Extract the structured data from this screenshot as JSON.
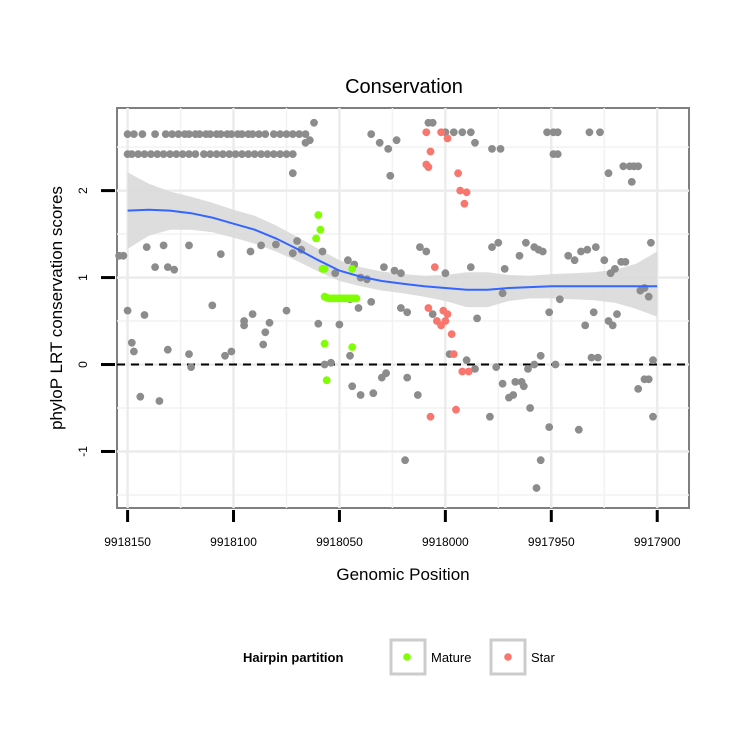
{
  "chart_data": {
    "type": "scatter",
    "title": "Conservation",
    "xlabel": "Genomic Position",
    "ylabel": "phyloP LRT conservation scores",
    "xlim": [
      9918155,
      9917885
    ],
    "x_reversed": true,
    "ylim": [
      -1.65,
      2.95
    ],
    "x_ticks": [
      9918150,
      9918100,
      9918050,
      9918000,
      9917950,
      9917900
    ],
    "x_tick_labels": [
      "9918150",
      "9918100",
      "9918050",
      "9918000",
      "9917950",
      "9917900"
    ],
    "y_ticks": [
      -1,
      0,
      1,
      2
    ],
    "y_tick_labels": [
      "-1",
      "0",
      "1",
      "2"
    ],
    "reference_line": {
      "y": 0,
      "style": "dashed"
    },
    "grid": true,
    "colors": {
      "other": "#8c8c8c",
      "Mature": "#7fff00",
      "Star": "#f8766d",
      "smooth": "#3366ff",
      "ribbon": "#d9d9d9"
    },
    "legend": {
      "title": "Hairpin partition",
      "position": "bottom",
      "entries": [
        {
          "label": "Mature",
          "color": "#7fff00"
        },
        {
          "label": "Star",
          "color": "#f8766d"
        }
      ]
    },
    "series": [
      {
        "name": "Other",
        "points": [
          [
            9918150,
            2.65
          ],
          [
            9918147,
            2.65
          ],
          [
            9918143,
            2.65
          ],
          [
            9918137,
            2.65
          ],
          [
            9918132,
            2.65
          ],
          [
            9918129,
            2.65
          ],
          [
            9918126,
            2.65
          ],
          [
            9918123,
            2.65
          ],
          [
            9918121,
            2.65
          ],
          [
            9918118,
            2.65
          ],
          [
            9918116,
            2.65
          ],
          [
            9918113,
            2.65
          ],
          [
            9918111,
            2.65
          ],
          [
            9918108,
            2.65
          ],
          [
            9918106,
            2.65
          ],
          [
            9918103,
            2.65
          ],
          [
            9918101,
            2.65
          ],
          [
            9918098,
            2.65
          ],
          [
            9918096,
            2.65
          ],
          [
            9918093,
            2.65
          ],
          [
            9918091,
            2.65
          ],
          [
            9918088,
            2.65
          ],
          [
            9918085,
            2.65
          ],
          [
            9918081,
            2.65
          ],
          [
            9918078,
            2.65
          ],
          [
            9918075,
            2.65
          ],
          [
            9918072,
            2.65
          ],
          [
            9918069,
            2.65
          ],
          [
            9918066,
            2.65
          ],
          [
            9918150,
            2.42
          ],
          [
            9918148,
            2.42
          ],
          [
            9918145,
            2.42
          ],
          [
            9918142,
            2.42
          ],
          [
            9918139,
            2.42
          ],
          [
            9918136,
            2.42
          ],
          [
            9918133,
            2.42
          ],
          [
            9918130,
            2.42
          ],
          [
            9918127,
            2.42
          ],
          [
            9918124,
            2.42
          ],
          [
            9918121,
            2.42
          ],
          [
            9918118,
            2.42
          ],
          [
            9918114,
            2.42
          ],
          [
            9918111,
            2.42
          ],
          [
            9918108,
            2.42
          ],
          [
            9918105,
            2.42
          ],
          [
            9918102,
            2.42
          ],
          [
            9918099,
            2.42
          ],
          [
            9918096,
            2.42
          ],
          [
            9918093,
            2.42
          ],
          [
            9918090,
            2.42
          ],
          [
            9918087,
            2.42
          ],
          [
            9918084,
            2.42
          ],
          [
            9918081,
            2.42
          ],
          [
            9918078,
            2.42
          ],
          [
            9918075,
            2.42
          ],
          [
            9918072,
            2.42
          ],
          [
            9918062,
            2.78
          ],
          [
            9918064,
            2.58
          ],
          [
            9918066,
            2.55
          ],
          [
            9918072,
            2.2
          ],
          [
            9918035,
            2.65
          ],
          [
            9918031,
            2.55
          ],
          [
            9918027,
            2.48
          ],
          [
            9918023,
            2.58
          ],
          [
            9918026,
            2.17
          ],
          [
            9918008,
            2.78
          ],
          [
            9918006,
            2.78
          ],
          [
            9918000,
            2.67
          ],
          [
            9917996,
            2.67
          ],
          [
            9917992,
            2.67
          ],
          [
            9917988,
            2.67
          ],
          [
            9917986,
            2.55
          ],
          [
            9917978,
            2.48
          ],
          [
            9917974,
            2.48
          ],
          [
            9917952,
            2.67
          ],
          [
            9917949,
            2.67
          ],
          [
            9917947,
            2.67
          ],
          [
            9917949,
            2.42
          ],
          [
            9917947,
            2.42
          ],
          [
            9917932,
            2.67
          ],
          [
            9917927,
            2.67
          ],
          [
            9917916,
            2.28
          ],
          [
            9917913,
            2.28
          ],
          [
            9917911,
            2.28
          ],
          [
            9917909,
            2.28
          ],
          [
            9917912,
            2.1
          ],
          [
            9917923,
            2.2
          ],
          [
            9918154,
            1.25
          ],
          [
            9918152,
            1.25
          ],
          [
            9918141,
            1.35
          ],
          [
            9918137,
            1.12
          ],
          [
            9918133,
            1.37
          ],
          [
            9918131,
            1.12
          ],
          [
            9918128,
            1.09
          ],
          [
            9918121,
            1.37
          ],
          [
            9918106,
            1.27
          ],
          [
            9918092,
            1.3
          ],
          [
            9918087,
            1.37
          ],
          [
            9918080,
            1.38
          ],
          [
            9918072,
            1.28
          ],
          [
            9918070,
            1.42
          ],
          [
            9918068,
            1.32
          ],
          [
            9918058,
            1.3
          ],
          [
            9918052,
            1.05
          ],
          [
            9918046,
            1.2
          ],
          [
            9918043,
            1.15
          ],
          [
            9918040,
            1.0
          ],
          [
            9918037,
            0.98
          ],
          [
            9918029,
            1.12
          ],
          [
            9918024,
            1.08
          ],
          [
            9918021,
            1.05
          ],
          [
            9918012,
            1.35
          ],
          [
            9918009,
            1.3
          ],
          [
            9918000,
            1.05
          ],
          [
            9917988,
            1.12
          ],
          [
            9917978,
            1.35
          ],
          [
            9917975,
            1.4
          ],
          [
            9917972,
            1.1
          ],
          [
            9917965,
            1.25
          ],
          [
            9917962,
            1.4
          ],
          [
            9917958,
            1.35
          ],
          [
            9917956,
            1.32
          ],
          [
            9917954,
            1.3
          ],
          [
            9917942,
            1.25
          ],
          [
            9917939,
            1.2
          ],
          [
            9917936,
            1.3
          ],
          [
            9917933,
            1.32
          ],
          [
            9917929,
            1.35
          ],
          [
            9917925,
            1.2
          ],
          [
            9917922,
            1.05
          ],
          [
            9917920,
            1.1
          ],
          [
            9917917,
            1.18
          ],
          [
            9917915,
            1.18
          ],
          [
            9917903,
            1.4
          ],
          [
            9918150,
            0.62
          ],
          [
            9918142,
            0.57
          ],
          [
            9918110,
            0.68
          ],
          [
            9918095,
            0.5
          ],
          [
            9918091,
            0.58
          ],
          [
            9918085,
            0.37
          ],
          [
            9918083,
            0.48
          ],
          [
            9918075,
            0.62
          ],
          [
            9918060,
            0.47
          ],
          [
            9918050,
            0.46
          ],
          [
            9918045,
            0.75
          ],
          [
            9918041,
            0.65
          ],
          [
            9918035,
            0.72
          ],
          [
            9918021,
            0.65
          ],
          [
            9918018,
            0.6
          ],
          [
            9918006,
            0.58
          ],
          [
            9917985,
            0.53
          ],
          [
            9917973,
            0.82
          ],
          [
            9917951,
            0.6
          ],
          [
            9917946,
            0.75
          ],
          [
            9917934,
            0.45
          ],
          [
            9917930,
            0.6
          ],
          [
            9917923,
            0.5
          ],
          [
            9917921,
            0.45
          ],
          [
            9917919,
            0.58
          ],
          [
            9917908,
            0.85
          ],
          [
            9917906,
            0.88
          ],
          [
            9917904,
            0.78
          ],
          [
            9918148,
            0.25
          ],
          [
            9918147,
            0.15
          ],
          [
            9918131,
            0.17
          ],
          [
            9918121,
            0.12
          ],
          [
            9918104,
            0.1
          ],
          [
            9918101,
            0.15
          ],
          [
            9918095,
            0.45
          ],
          [
            9918086,
            0.23
          ],
          [
            9918057,
            0.0
          ],
          [
            9918054,
            0.02
          ],
          [
            9918045,
            0.1
          ],
          [
            9918018,
            -0.15
          ],
          [
            9918013,
            -0.35
          ],
          [
            9917998,
            0.12
          ],
          [
            9917990,
            0.05
          ],
          [
            9917986,
            -0.05
          ],
          [
            9917976,
            -0.03
          ],
          [
            9917973,
            -0.22
          ],
          [
            9917970,
            -0.38
          ],
          [
            9917968,
            -0.35
          ],
          [
            9917964,
            -0.2
          ],
          [
            9917961,
            -0.05
          ],
          [
            9917958,
            0.0
          ],
          [
            9917955,
            0.1
          ],
          [
            9917948,
            0.0
          ],
          [
            9917931,
            0.08
          ],
          [
            9917928,
            0.08
          ],
          [
            9917909,
            -0.28
          ],
          [
            9917906,
            -0.17
          ],
          [
            9917904,
            -0.17
          ],
          [
            9917902,
            0.05
          ],
          [
            9918144,
            -0.37
          ],
          [
            9918135,
            -0.42
          ],
          [
            9918120,
            -0.03
          ],
          [
            9918044,
            -0.25
          ],
          [
            9918040,
            -0.35
          ],
          [
            9918034,
            -0.33
          ],
          [
            9918030,
            -0.15
          ],
          [
            9918028,
            -0.1
          ],
          [
            9917967,
            -0.2
          ],
          [
            9917963,
            -0.25
          ],
          [
            9917937,
            -0.75
          ],
          [
            9917960,
            -0.5
          ],
          [
            9917979,
            -0.6
          ],
          [
            9917951,
            -0.72
          ],
          [
            9917955,
            -1.1
          ],
          [
            9917957,
            -1.42
          ],
          [
            9917902,
            -0.6
          ],
          [
            9918019,
            -1.1
          ]
        ]
      },
      {
        "name": "Mature",
        "points": [
          [
            9918060,
            1.72
          ],
          [
            9918059,
            1.55
          ],
          [
            9918061,
            1.45
          ],
          [
            9918058,
            1.1
          ],
          [
            9918057,
            1.1
          ],
          [
            9918044,
            1.1
          ],
          [
            9918057,
            0.78
          ],
          [
            9918056,
            0.77
          ],
          [
            9918055,
            0.76
          ],
          [
            9918054,
            0.76
          ],
          [
            9918053,
            0.76
          ],
          [
            9918052,
            0.76
          ],
          [
            9918051,
            0.76
          ],
          [
            9918050,
            0.76
          ],
          [
            9918049,
            0.76
          ],
          [
            9918048,
            0.76
          ],
          [
            9918047,
            0.76
          ],
          [
            9918046,
            0.76
          ],
          [
            9918045,
            0.76
          ],
          [
            9918044,
            0.76
          ],
          [
            9918043,
            0.76
          ],
          [
            9918042,
            0.76
          ],
          [
            9918057,
            0.24
          ],
          [
            9918044,
            0.2
          ],
          [
            9918056,
            -0.18
          ]
        ]
      },
      {
        "name": "Star",
        "points": [
          [
            9918009,
            2.67
          ],
          [
            9918002,
            2.67
          ],
          [
            9917999,
            2.6
          ],
          [
            9918007,
            2.45
          ],
          [
            9918009,
            2.3
          ],
          [
            9918008,
            2.27
          ],
          [
            9917994,
            2.2
          ],
          [
            9917993,
            2.0
          ],
          [
            9917990,
            1.98
          ],
          [
            9917991,
            1.85
          ],
          [
            9918005,
            1.12
          ],
          [
            9918008,
            0.65
          ],
          [
            9918001,
            0.62
          ],
          [
            9917999,
            0.58
          ],
          [
            9918000,
            0.5
          ],
          [
            9918004,
            0.5
          ],
          [
            9918002,
            0.45
          ],
          [
            9917997,
            0.35
          ],
          [
            9917996,
            0.12
          ],
          [
            9917992,
            -0.08
          ],
          [
            9917989,
            -0.08
          ],
          [
            9918007,
            -0.6
          ],
          [
            9917995,
            -0.52
          ]
        ]
      }
    ],
    "smooth": {
      "method": "loess",
      "x": [
        9918150,
        9918140,
        9918130,
        9918120,
        9918110,
        9918100,
        9918090,
        9918080,
        9918070,
        9918060,
        9918050,
        9918040,
        9918030,
        9918020,
        9918010,
        9918000,
        9917990,
        9917980,
        9917970,
        9917960,
        9917950,
        9917940,
        9917930,
        9917920,
        9917910,
        9917900
      ],
      "y": [
        1.77,
        1.78,
        1.77,
        1.74,
        1.69,
        1.62,
        1.55,
        1.45,
        1.33,
        1.2,
        1.08,
        1.01,
        0.96,
        0.93,
        0.9,
        0.88,
        0.86,
        0.86,
        0.88,
        0.89,
        0.9,
        0.9,
        0.9,
        0.9,
        0.9,
        0.9
      ],
      "lower": [
        1.33,
        1.48,
        1.55,
        1.55,
        1.52,
        1.46,
        1.39,
        1.3,
        1.19,
        1.07,
        0.96,
        0.9,
        0.85,
        0.82,
        0.78,
        0.73,
        0.66,
        0.66,
        0.73,
        0.76,
        0.76,
        0.75,
        0.74,
        0.71,
        0.64,
        0.55
      ],
      "upper": [
        2.21,
        2.08,
        1.99,
        1.93,
        1.86,
        1.78,
        1.71,
        1.6,
        1.47,
        1.33,
        1.2,
        1.12,
        1.07,
        1.04,
        1.02,
        1.03,
        1.06,
        1.06,
        1.03,
        1.02,
        1.04,
        1.05,
        1.06,
        1.09,
        1.16,
        1.3
      ]
    }
  }
}
